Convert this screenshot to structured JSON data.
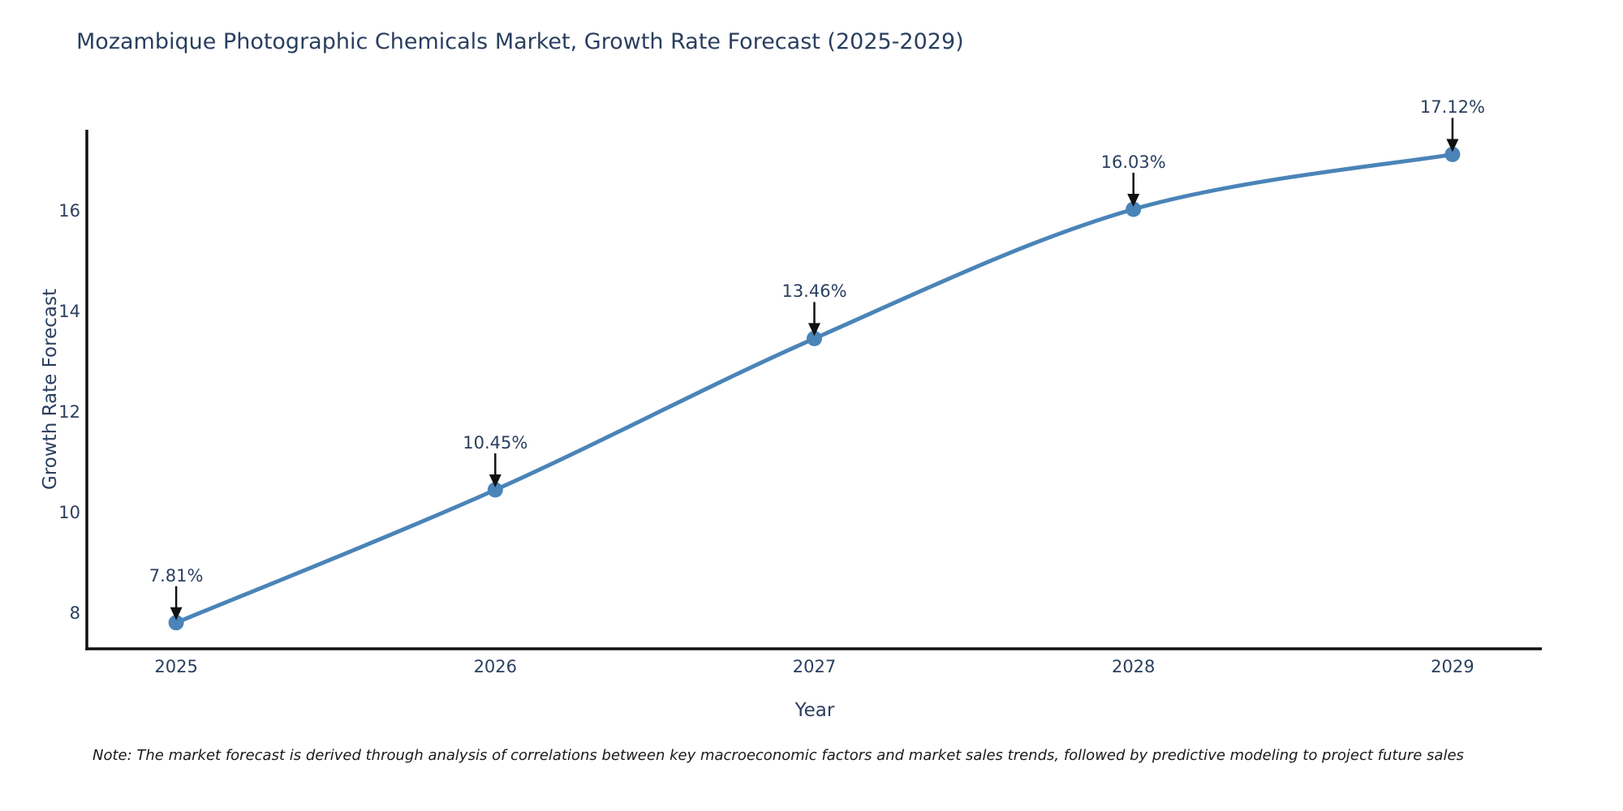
{
  "chart_data": {
    "type": "line",
    "title": "Mozambique Photographic Chemicals Market, Growth Rate Forecast (2025-2029)",
    "xlabel": "Year",
    "ylabel": "Growth Rate Forecast",
    "x": [
      2025,
      2026,
      2027,
      2028,
      2029
    ],
    "y": [
      7.81,
      10.45,
      13.46,
      16.03,
      17.12
    ],
    "point_labels": [
      "7.81%",
      "10.45%",
      "13.46%",
      "16.03%",
      "17.12%"
    ],
    "x_ticks": [
      2025,
      2026,
      2027,
      2028,
      2029
    ],
    "y_ticks": [
      8,
      10,
      12,
      14,
      16
    ],
    "xlim": [
      2024.72,
      2029.28
    ],
    "ylim": [
      7.29,
      17.61
    ],
    "grid": false,
    "legend": "none",
    "line_shape": "spline",
    "line_color": "#4a84b8",
    "marker_color": "#4a84b8",
    "marker_size": 19,
    "axis_color": "#111111",
    "text_color": "#2a3f5f",
    "annotation_arrow_color": "#111111"
  },
  "note": "Note: The market forecast is derived through analysis of correlations between key macroeconomic factors and market sales trends, followed by predictive modeling to project future sales"
}
